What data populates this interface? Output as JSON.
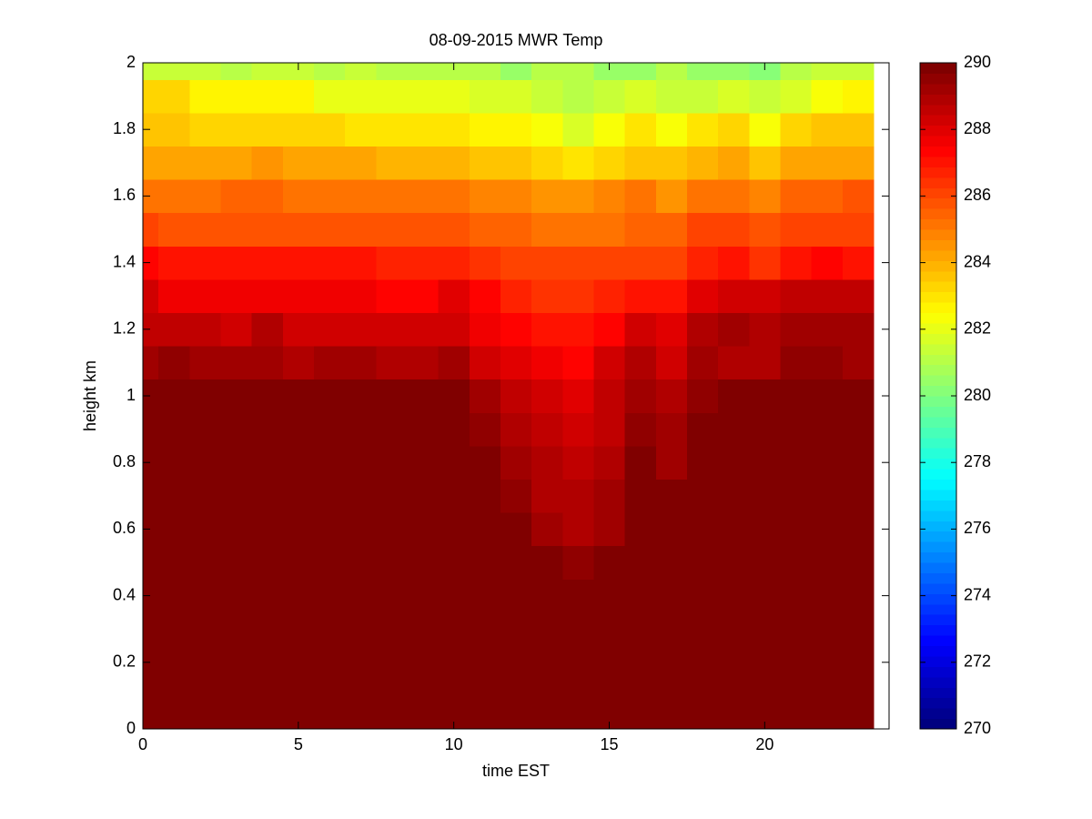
{
  "chart_data": {
    "type": "heatmap",
    "title": "08-09-2015 MWR Temp",
    "xlabel": "time EST",
    "ylabel": "height km",
    "colormap": "jet",
    "x": [
      0,
      1,
      2,
      3,
      4,
      5,
      6,
      7,
      8,
      9,
      10,
      11,
      12,
      13,
      14,
      15,
      16,
      17,
      18,
      19,
      20,
      21,
      22,
      23
    ],
    "y": [
      0,
      0.1,
      0.2,
      0.3,
      0.4,
      0.5,
      0.6,
      0.7,
      0.8,
      0.9,
      1.0,
      1.1,
      1.2,
      1.3,
      1.4,
      1.5,
      1.6,
      1.7,
      1.8,
      1.9,
      2.0
    ],
    "z": [
      [
        290,
        290,
        290,
        290,
        290,
        290,
        290,
        290,
        290,
        290,
        290,
        290,
        290,
        290,
        290,
        290,
        290,
        290,
        290,
        290,
        290,
        290,
        290,
        290
      ],
      [
        290,
        290,
        290,
        290,
        290,
        290,
        290,
        290,
        290,
        290,
        290,
        290,
        290,
        290,
        290,
        290,
        290,
        290,
        290,
        290,
        290,
        290,
        290,
        290
      ],
      [
        290,
        290,
        290,
        290,
        290,
        290,
        290,
        290,
        290,
        290,
        290,
        290,
        290,
        290,
        290,
        290,
        290,
        290,
        290,
        290,
        290,
        290,
        290,
        290
      ],
      [
        290,
        290,
        290,
        290,
        290,
        290,
        290,
        290,
        290,
        290,
        290,
        290,
        290,
        290,
        290,
        290,
        290,
        290,
        290,
        290,
        290,
        290,
        290,
        290
      ],
      [
        290,
        290,
        290,
        290,
        290,
        290,
        290,
        290,
        290,
        290,
        290,
        290,
        290,
        290,
        290,
        290,
        290,
        290,
        290,
        290,
        290,
        290,
        290,
        290
      ],
      [
        290,
        290,
        290,
        290,
        290,
        290,
        290,
        290,
        290,
        290,
        290,
        290,
        290,
        290,
        289.6,
        290,
        290,
        290,
        290,
        290,
        290,
        290,
        290,
        290
      ],
      [
        290,
        290,
        290,
        290,
        290,
        290,
        290,
        290,
        290,
        290,
        290,
        290,
        290,
        289.4,
        289.2,
        289.5,
        290,
        290,
        290,
        290,
        290,
        290,
        290,
        290
      ],
      [
        290,
        290,
        290,
        290,
        290,
        290,
        290,
        290,
        290,
        290,
        290,
        290,
        289.7,
        289.1,
        288.9,
        289.3,
        290,
        290,
        290,
        290,
        290,
        290,
        290,
        290
      ],
      [
        290,
        290,
        290,
        290,
        290,
        290,
        290,
        290,
        290,
        290,
        290,
        290,
        289.5,
        288.9,
        288.6,
        289.2,
        290,
        289.5,
        290,
        290,
        290,
        290,
        290,
        290
      ],
      [
        290,
        290,
        290,
        290,
        290,
        290,
        290,
        290,
        290,
        290,
        290,
        289.6,
        289.1,
        288.7,
        288.4,
        288.7,
        289.6,
        289.3,
        290,
        290,
        290,
        290,
        290,
        290
      ],
      [
        290,
        290,
        290,
        290,
        290,
        290,
        290,
        290,
        290,
        290,
        290,
        289.3,
        288.8,
        288.5,
        288.2,
        288.6,
        289.3,
        289,
        289.6,
        290,
        290,
        290,
        290,
        290
      ],
      [
        289.3,
        289.6,
        289.3,
        289.3,
        289.3,
        289,
        289.3,
        289.3,
        289.1,
        289.1,
        289.4,
        288.5,
        288.2,
        287.8,
        287.5,
        288.3,
        289,
        288.4,
        289.3,
        289.1,
        289.1,
        289.8,
        289.8,
        289.5
      ],
      [
        288.6,
        288.7,
        288.7,
        288.4,
        289,
        288.5,
        288.5,
        288.5,
        288.5,
        288.5,
        288.5,
        287.9,
        287.4,
        287.3,
        287.3,
        287.6,
        288.5,
        288,
        289.2,
        289.4,
        288.9,
        289.5,
        289.5,
        289.3
      ],
      [
        288.3,
        287.9,
        287.9,
        287.9,
        287.9,
        287.9,
        287.9,
        287.9,
        287.6,
        287.6,
        288,
        287.4,
        286.9,
        286.6,
        286.6,
        286.9,
        287.3,
        287.3,
        288.2,
        288.4,
        288.4,
        288.6,
        288.6,
        288.6
      ],
      [
        287.4,
        287.1,
        287.1,
        287.1,
        287.1,
        287.1,
        287.1,
        287.1,
        286.8,
        286.8,
        286.8,
        286.5,
        286.1,
        286.1,
        286.1,
        286.3,
        286.1,
        286.1,
        286.7,
        287,
        286.6,
        287.1,
        287.6,
        287.1
      ],
      [
        286.3,
        286,
        286,
        286,
        286,
        286,
        286,
        286,
        285.9,
        285.9,
        285.9,
        285.6,
        285.6,
        285.2,
        285.2,
        285.2,
        285.7,
        285.4,
        286.1,
        286.1,
        285.8,
        286.1,
        286.1,
        286.1
      ],
      [
        285.2,
        285.2,
        285.2,
        285.4,
        285.5,
        285.3,
        285.3,
        285.3,
        285.1,
        285.1,
        285.3,
        284.8,
        284.8,
        284.5,
        284.5,
        284.8,
        285.1,
        284.7,
        285.1,
        285.3,
        285,
        285.5,
        285.5,
        285.8
      ],
      [
        284.2,
        284.2,
        284.2,
        284.4,
        284.5,
        284.2,
        284.2,
        284.2,
        283.9,
        283.9,
        283.9,
        283.5,
        283.5,
        283.3,
        282.9,
        283.3,
        283.6,
        283.6,
        284,
        284.2,
        283.5,
        284.2,
        284.4,
        284.4
      ],
      [
        283.7,
        283.6,
        283.3,
        283.3,
        283.3,
        283.3,
        283.3,
        283,
        283,
        283,
        283,
        282.8,
        282.8,
        282.3,
        281.8,
        282.5,
        283,
        282.3,
        283,
        283.2,
        282.3,
        283.3,
        283.5,
        283.7
      ],
      [
        283.2,
        283.2,
        282.6,
        282.6,
        282.6,
        282.6,
        282.1,
        282.1,
        282.1,
        282.1,
        282.1,
        281.8,
        281.8,
        281.4,
        281.1,
        281.4,
        281.8,
        281.4,
        281.4,
        281.8,
        281.4,
        281.8,
        282.3,
        282.8
      ],
      [
        281.5,
        281.3,
        281.3,
        281,
        281.3,
        281.3,
        281,
        281.3,
        281,
        281,
        281,
        281,
        280.5,
        281,
        281,
        280.5,
        280.5,
        281,
        280.5,
        280.5,
        280.3,
        281,
        281.3,
        281.5
      ]
    ],
    "xlim": [
      0,
      24
    ],
    "ylim": [
      0,
      2
    ],
    "xticks": [
      0,
      5,
      10,
      15,
      20
    ],
    "yticks": [
      0,
      0.2,
      0.4,
      0.6,
      0.8,
      1,
      1.2,
      1.4,
      1.6,
      1.8,
      2
    ],
    "clim": [
      270,
      290
    ],
    "cticks": [
      270,
      272,
      274,
      276,
      278,
      280,
      282,
      284,
      286,
      288,
      290
    ]
  }
}
